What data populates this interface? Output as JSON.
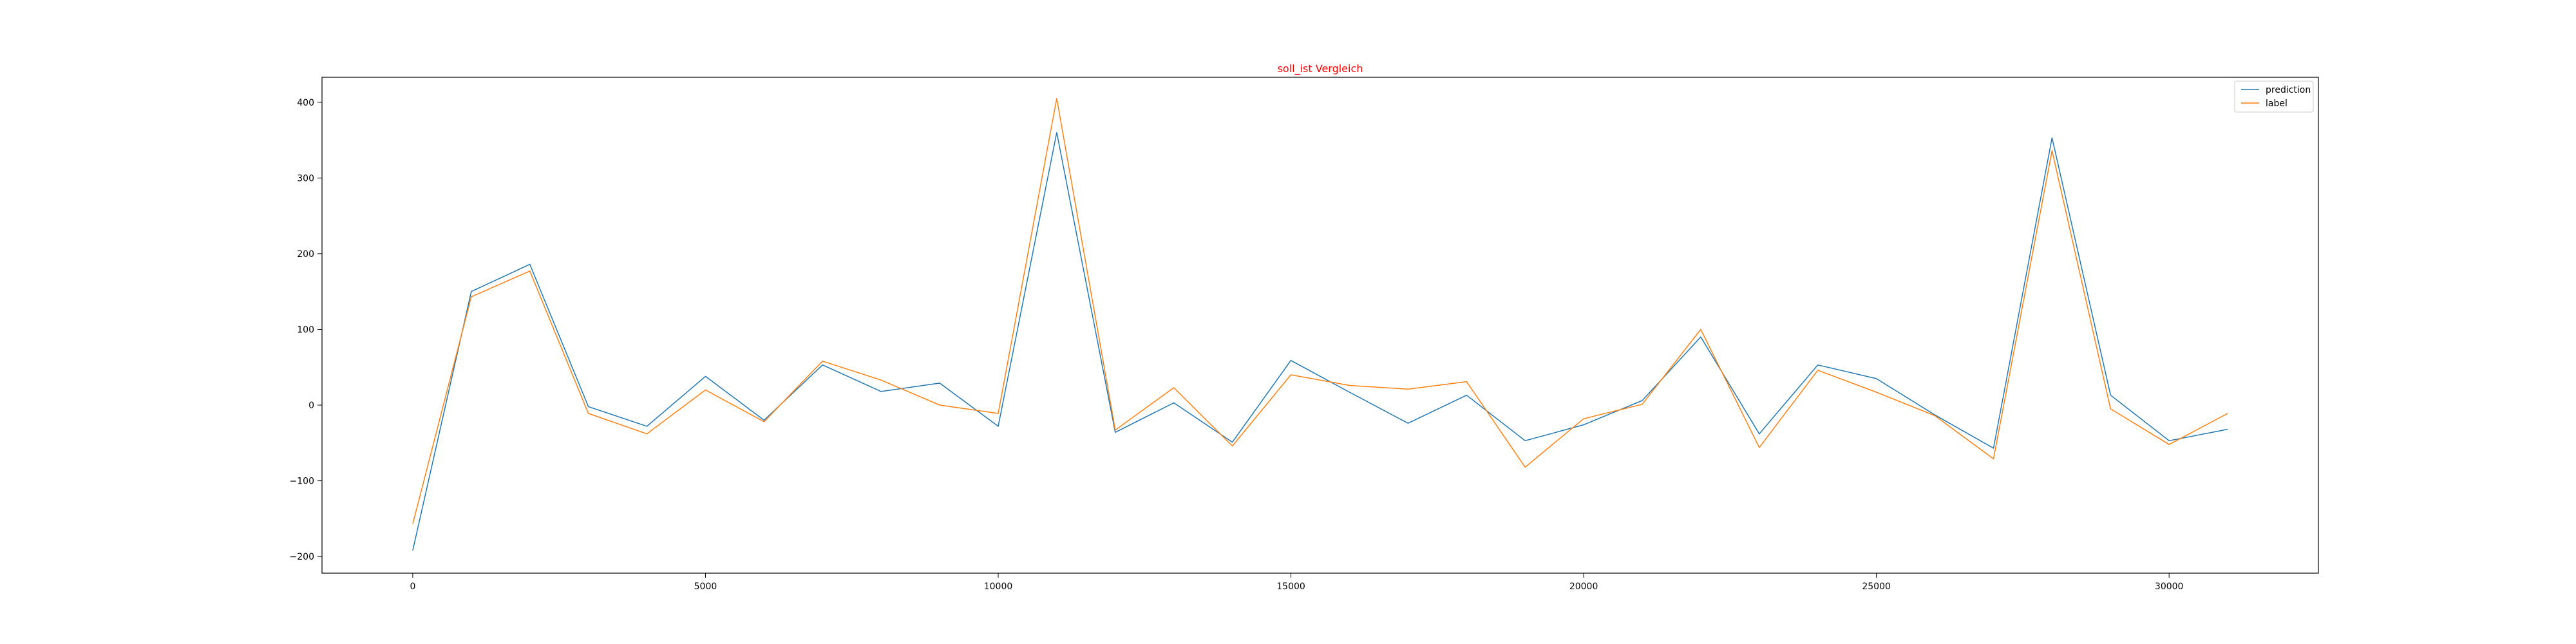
{
  "chart_data": {
    "type": "line",
    "title": "soll_ist Vergleich",
    "title_color": "#ff0000",
    "xlabel": "",
    "ylabel": "",
    "xlim": [
      -1550,
      32550
    ],
    "ylim": [
      -222,
      433
    ],
    "xticks": [
      0,
      5000,
      10000,
      15000,
      20000,
      25000,
      30000
    ],
    "xtick_labels": [
      "0",
      "5000",
      "10000",
      "15000",
      "20000",
      "25000",
      "30000"
    ],
    "yticks": [
      -200,
      -100,
      0,
      100,
      200,
      300,
      400
    ],
    "ytick_labels": [
      "−200",
      "−100",
      "0",
      "100",
      "200",
      "300",
      "400"
    ],
    "grid": false,
    "legend_position": "top-right",
    "x": [
      0,
      1000,
      2000,
      3000,
      4000,
      5000,
      6000,
      7000,
      8000,
      9000,
      10000,
      11000,
      12000,
      13000,
      14000,
      15000,
      16000,
      17000,
      18000,
      19000,
      20000,
      21000,
      22000,
      23000,
      24000,
      25000,
      26000,
      27000,
      28000,
      29000,
      30000,
      31000
    ],
    "series": [
      {
        "name": "prediction",
        "color": "#1f77b4",
        "values": [
          -192,
          150,
          186,
          -2,
          -28,
          38,
          -20,
          53,
          18,
          29,
          -28,
          360,
          -36,
          3,
          -49,
          59,
          17,
          -24,
          13,
          -47,
          -26,
          6,
          90,
          -38,
          53,
          35,
          -13,
          -57,
          353,
          13,
          -47,
          -32
        ]
      },
      {
        "name": "label",
        "color": "#ff7f0e",
        "values": [
          -157,
          143,
          177,
          -11,
          -38,
          20,
          -22,
          58,
          33,
          0,
          -11,
          405,
          -33,
          23,
          -54,
          40,
          26,
          21,
          31,
          -82,
          -18,
          1,
          100,
          -56,
          46,
          17,
          -14,
          -71,
          336,
          -5,
          -52,
          -11
        ]
      }
    ]
  }
}
